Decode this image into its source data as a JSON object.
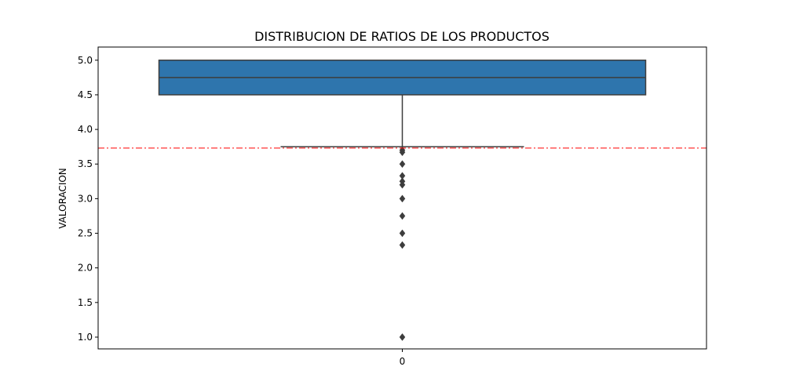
{
  "chart_data": {
    "type": "box",
    "title": "DISTRIBUCION DE RATIOS DE LOS PRODUCTOS",
    "xlabel": "",
    "ylabel": "VALORACION",
    "categories": [
      "0"
    ],
    "ylim": [
      0.83,
      5.19
    ],
    "yticks": [
      "1.0",
      "1.5",
      "2.0",
      "2.5",
      "3.0",
      "3.5",
      "4.0",
      "4.5",
      "5.0"
    ],
    "box": {
      "q1": 4.5,
      "median": 4.75,
      "q3": 5.0,
      "whisker_low": 3.75,
      "whisker_high": 5.0,
      "outliers": [
        3.7,
        3.67,
        3.5,
        3.33,
        3.25,
        3.2,
        3.0,
        2.75,
        2.5,
        2.33,
        1.0
      ]
    },
    "reference_line": {
      "y": 3.73,
      "style": "dash-dot"
    },
    "colors": {
      "box": "#2e75ad",
      "edge": "#3d3d3d",
      "reference": "#ff0000"
    },
    "grid": false,
    "legend": "none"
  }
}
